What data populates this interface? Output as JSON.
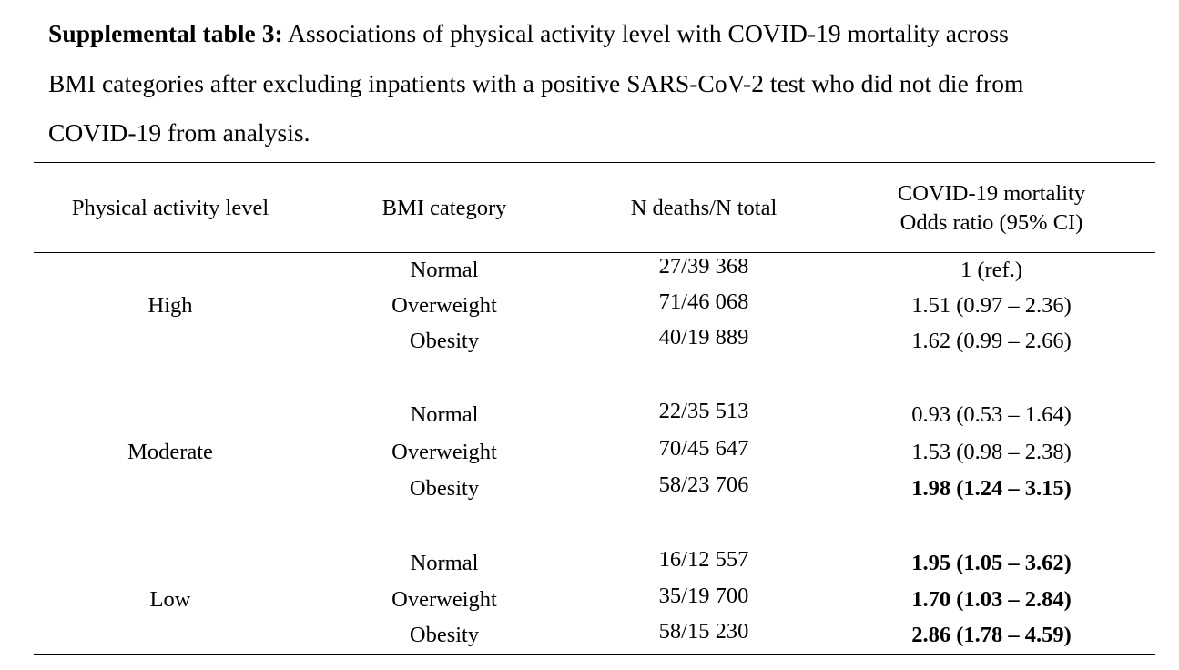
{
  "caption": {
    "label": "Supplemental table 3:",
    "line1": " Associations of physical activity level with COVID-19 mortality across",
    "line2": "BMI categories after excluding inpatients with a positive SARS-CoV-2 test who did not die from",
    "line3": "COVID-19 from analysis."
  },
  "headers": {
    "activity": "Physical activity level",
    "bmi": "BMI category",
    "deaths": "N deaths/N total",
    "or_line1": "COVID-19 mortality",
    "or_line2": "Odds ratio (95% CI)"
  },
  "groups": [
    {
      "activity": "High",
      "rows": [
        {
          "bmi": "Normal",
          "deaths": "27/39 368",
          "or": "1 (ref.)",
          "bold": false
        },
        {
          "bmi": "Overweight",
          "deaths": "71/46 068",
          "or": "1.51 (0.97 – 2.36)",
          "bold": false
        },
        {
          "bmi": "Obesity",
          "deaths": "40/19 889",
          "or": "1.62 (0.99 – 2.66)",
          "bold": false
        }
      ]
    },
    {
      "activity": "Moderate",
      "rows": [
        {
          "bmi": "Normal",
          "deaths": "22/35 513",
          "or": "0.93 (0.53 – 1.64)",
          "bold": false
        },
        {
          "bmi": "Overweight",
          "deaths": "70/45 647",
          "or": "1.53 (0.98 – 2.38)",
          "bold": false
        },
        {
          "bmi": "Obesity",
          "deaths": "58/23 706",
          "or": "1.98 (1.24 – 3.15)",
          "bold": true
        }
      ]
    },
    {
      "activity": "Low",
      "rows": [
        {
          "bmi": "Normal",
          "deaths": "16/12 557",
          "or": "1.95 (1.05 – 3.62)",
          "bold": true
        },
        {
          "bmi": "Overweight",
          "deaths": "35/19 700",
          "or": "1.70 (1.03 – 2.84)",
          "bold": true
        },
        {
          "bmi": "Obesity",
          "deaths": "58/15 230",
          "or": "2.86 (1.78 – 4.59)",
          "bold": true
        }
      ]
    }
  ]
}
